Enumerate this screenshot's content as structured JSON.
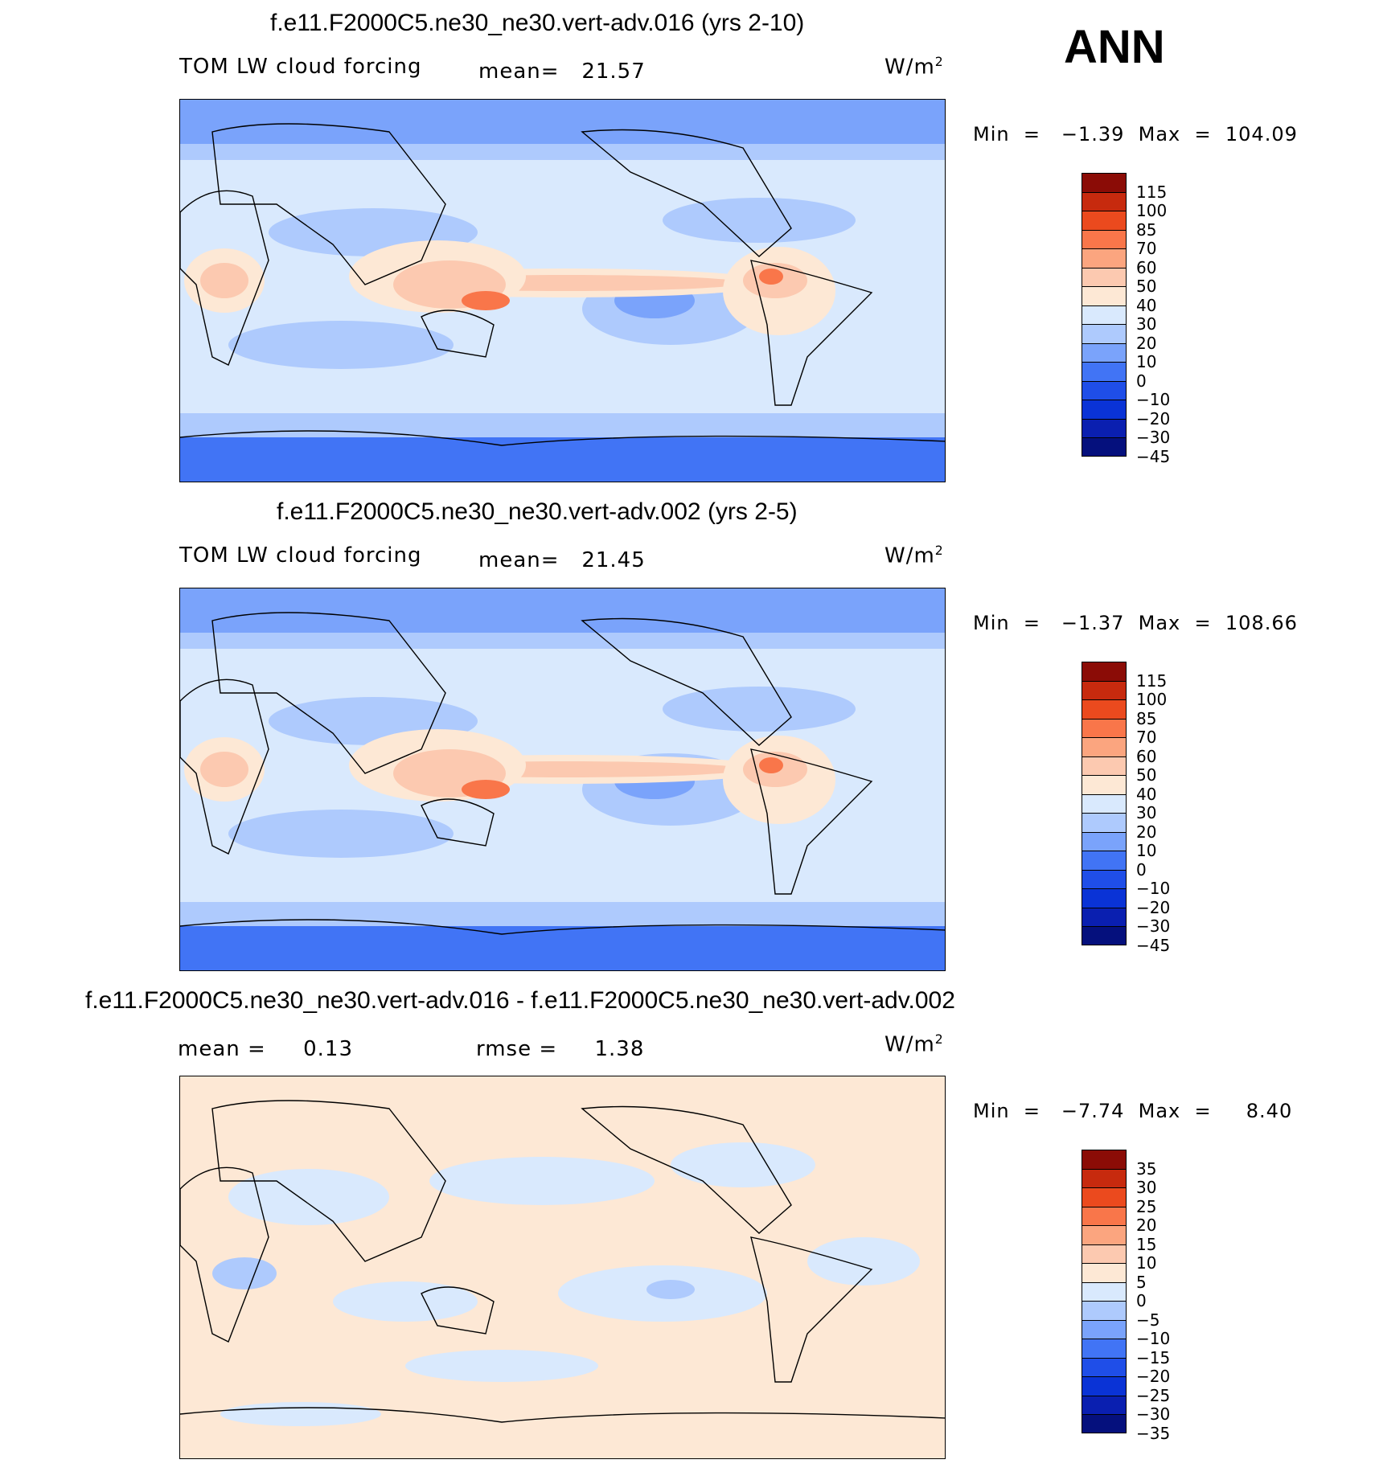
{
  "season": "ANN",
  "colors": {
    "land_outline": "#000000",
    "abs_scale": [
      "#05107d",
      "#0a1fb0",
      "#0a33d6",
      "#1f4ee8",
      "#4174f5",
      "#7aa3fb",
      "#aecafd",
      "#d9e9fd",
      "#fde8d5",
      "#fcc9b0",
      "#fba57f",
      "#f9764a",
      "#eb4a1e",
      "#c72a0e",
      "#8b0c06"
    ],
    "diff_scale": [
      "#05107d",
      "#0a1fb0",
      "#0a33d6",
      "#1f4ee8",
      "#4174f5",
      "#7aa3fb",
      "#aecafd",
      "#d9e9fd",
      "#fde8d5",
      "#fcc9b0",
      "#fba57f",
      "#f9764a",
      "#eb4a1e",
      "#c72a0e",
      "#8b0c06"
    ]
  },
  "panels": [
    {
      "title": "f.e11.F2000C5.ne30_ne30.vert-adv.016 (yrs 2-10)",
      "variable": "TOM LW cloud forcing",
      "mean_label": "mean=   21.57",
      "units": "W/m",
      "units_sup": "2",
      "minmax": "Min  =   −1.39  Max  =  104.09",
      "colorbar_labels": [
        "115",
        "100",
        "85",
        "70",
        "60",
        "50",
        "40",
        "30",
        "20",
        "10",
        "0",
        "−10",
        "−20",
        "−30",
        "−45"
      ]
    },
    {
      "title": "f.e11.F2000C5.ne30_ne30.vert-adv.002 (yrs 2-5)",
      "variable": "TOM LW cloud forcing",
      "mean_label": "mean=   21.45",
      "units": "W/m",
      "units_sup": "2",
      "minmax": "Min  =   −1.37  Max  =  108.66",
      "colorbar_labels": [
        "115",
        "100",
        "85",
        "70",
        "60",
        "50",
        "40",
        "30",
        "20",
        "10",
        "0",
        "−10",
        "−20",
        "−30",
        "−45"
      ]
    },
    {
      "title": "f.e11.F2000C5.ne30_ne30.vert-adv.016 - f.e11.F2000C5.ne30_ne30.vert-adv.002",
      "mean_label": "mean =     0.13",
      "rmse_label": "rmse =     1.38",
      "units": "W/m",
      "units_sup": "2",
      "minmax": "Min  =   −7.74  Max  =     8.40",
      "colorbar_labels": [
        "35",
        "30",
        "25",
        "20",
        "15",
        "10",
        "5",
        "0",
        "−5",
        "−10",
        "−15",
        "−20",
        "−25",
        "−30",
        "−35"
      ]
    }
  ]
}
